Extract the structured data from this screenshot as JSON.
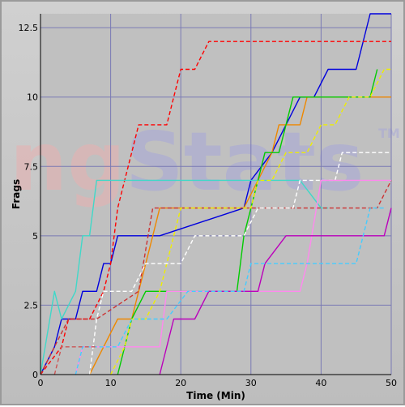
{
  "watermark": {
    "text": "ngStats",
    "trademark": "TM",
    "colors": [
      "#e8b0b0",
      "#a8a8d8"
    ]
  },
  "chart_data": {
    "type": "line",
    "xlabel": "Time (Min)",
    "ylabel": "Frags",
    "xlim": [
      0,
      50
    ],
    "ylim": [
      0,
      13
    ],
    "x_ticks": [
      "0",
      "10",
      "20",
      "30",
      "40",
      "50"
    ],
    "y_ticks": [
      "0",
      "2.5",
      "5",
      "7.5",
      "10",
      "12.5"
    ],
    "grid": true,
    "background": "#c0c0c0",
    "grid_color": "#7a7ab4",
    "series": [
      {
        "color": "#0000dd",
        "dash": false,
        "points": [
          [
            0,
            0
          ],
          [
            2,
            1
          ],
          [
            3,
            2
          ],
          [
            4,
            2
          ],
          [
            5,
            2
          ],
          [
            6,
            3
          ],
          [
            8,
            3
          ],
          [
            9,
            4
          ],
          [
            10,
            4
          ],
          [
            11,
            5
          ],
          [
            17,
            5
          ],
          [
            29,
            6
          ],
          [
            30,
            7
          ],
          [
            33,
            8
          ],
          [
            35,
            9
          ],
          [
            37,
            10
          ],
          [
            39,
            10
          ],
          [
            41,
            11
          ],
          [
            45,
            11
          ],
          [
            47,
            13
          ],
          [
            50,
            13
          ]
        ]
      },
      {
        "color": "#ff0000",
        "dash": true,
        "points": [
          [
            0,
            0
          ],
          [
            3,
            1
          ],
          [
            4,
            2
          ],
          [
            7,
            2
          ],
          [
            9,
            3
          ],
          [
            10,
            4
          ],
          [
            11,
            6
          ],
          [
            12,
            7
          ],
          [
            13,
            8
          ],
          [
            14,
            9
          ],
          [
            18,
            9
          ],
          [
            19,
            10
          ],
          [
            20,
            11
          ],
          [
            22,
            11
          ],
          [
            24,
            12
          ],
          [
            50,
            12
          ]
        ]
      },
      {
        "color": "#40d8c8",
        "dash": false,
        "points": [
          [
            0,
            0
          ],
          [
            2,
            3
          ],
          [
            3,
            2
          ],
          [
            5,
            3
          ],
          [
            6,
            5
          ],
          [
            7,
            5
          ],
          [
            8,
            7
          ],
          [
            37,
            7
          ],
          [
            40,
            6
          ],
          [
            41,
            6
          ]
        ]
      },
      {
        "color": "#ee8800",
        "dash": false,
        "points": [
          [
            7,
            0
          ],
          [
            9,
            1
          ],
          [
            11,
            2
          ],
          [
            13,
            2
          ],
          [
            14,
            3
          ],
          [
            16,
            5
          ],
          [
            17,
            6
          ],
          [
            20,
            6
          ],
          [
            29,
            6
          ],
          [
            31,
            7
          ],
          [
            33,
            8
          ],
          [
            34,
            9
          ],
          [
            37,
            9
          ],
          [
            38,
            10
          ],
          [
            50,
            10
          ]
        ]
      },
      {
        "color": "#cc3333",
        "dash": true,
        "points": [
          [
            0,
            0
          ],
          [
            4,
            2
          ],
          [
            8,
            2
          ],
          [
            14,
            3
          ],
          [
            16,
            6
          ],
          [
            40,
            6
          ],
          [
            48,
            6
          ],
          [
            50,
            7
          ]
        ]
      },
      {
        "color": "#00cc00",
        "dash": false,
        "points": [
          [
            11,
            0
          ],
          [
            13,
            2
          ],
          [
            15,
            3
          ],
          [
            18,
            3
          ],
          [
            28,
            3
          ],
          [
            29,
            5
          ],
          [
            31,
            7
          ],
          [
            32,
            8
          ],
          [
            34,
            8
          ],
          [
            35,
            9
          ],
          [
            36,
            10
          ],
          [
            40,
            10
          ],
          [
            47,
            10
          ],
          [
            48,
            11
          ]
        ]
      },
      {
        "color": "#eeee00",
        "dash": true,
        "points": [
          [
            10,
            0
          ],
          [
            12,
            1
          ],
          [
            13,
            2
          ],
          [
            15,
            2
          ],
          [
            17,
            3
          ],
          [
            18,
            4
          ],
          [
            20,
            6
          ],
          [
            30,
            6
          ],
          [
            31,
            7
          ],
          [
            33,
            7
          ],
          [
            35,
            8
          ],
          [
            38,
            8
          ],
          [
            40,
            9
          ],
          [
            42,
            9
          ],
          [
            44,
            10
          ],
          [
            47,
            10
          ],
          [
            49,
            11
          ],
          [
            50,
            11
          ]
        ]
      },
      {
        "color": "#ffffff",
        "dash": true,
        "points": [
          [
            7,
            0
          ],
          [
            8,
            2
          ],
          [
            9,
            3
          ],
          [
            13,
            3
          ],
          [
            15,
            4
          ],
          [
            20,
            4
          ],
          [
            22,
            5
          ],
          [
            29,
            5
          ],
          [
            31,
            6
          ],
          [
            36,
            6
          ],
          [
            37,
            7
          ],
          [
            42,
            7
          ],
          [
            43,
            8
          ],
          [
            50,
            8
          ]
        ]
      },
      {
        "color": "#ff88ee",
        "dash": false,
        "points": [
          [
            5,
            0
          ],
          [
            6,
            1
          ],
          [
            15,
            1
          ],
          [
            17,
            1
          ],
          [
            18,
            3
          ],
          [
            24,
            3
          ],
          [
            31,
            3
          ],
          [
            37,
            3
          ],
          [
            38,
            4
          ],
          [
            40,
            7
          ],
          [
            50,
            7
          ]
        ]
      },
      {
        "color": "#bb00bb",
        "dash": false,
        "points": [
          [
            17,
            0
          ],
          [
            19,
            2
          ],
          [
            22,
            2
          ],
          [
            24,
            3
          ],
          [
            31,
            3
          ],
          [
            32,
            4
          ],
          [
            35,
            5
          ],
          [
            49,
            5
          ],
          [
            50,
            6
          ]
        ]
      },
      {
        "color": "#44ccff",
        "dash": true,
        "points": [
          [
            5,
            0
          ],
          [
            6,
            1
          ],
          [
            11,
            1
          ],
          [
            13,
            2
          ],
          [
            16,
            2
          ],
          [
            18,
            2
          ],
          [
            21,
            3
          ],
          [
            29,
            3
          ],
          [
            30,
            4
          ],
          [
            40,
            4
          ],
          [
            45,
            4
          ],
          [
            47,
            6
          ],
          [
            49,
            6
          ]
        ]
      },
      {
        "color": "#cc5555",
        "dash": true,
        "points": [
          [
            2,
            0
          ],
          [
            3,
            1
          ],
          [
            7,
            1
          ],
          [
            8,
            1
          ]
        ]
      }
    ]
  }
}
